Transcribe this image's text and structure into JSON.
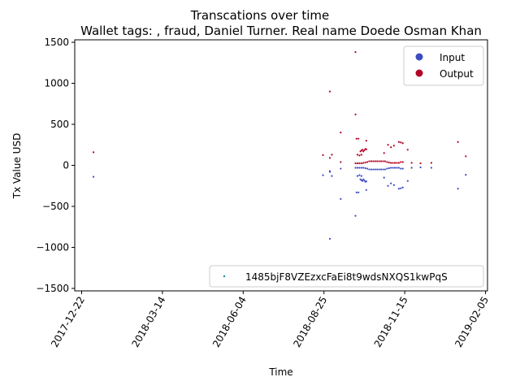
{
  "chart_data": {
    "type": "scatter",
    "title": "Transcations over time",
    "subtitle": "Wallet tags: , fraud, Daniel Turner. Real name Doede Osman Khan",
    "xlabel": "Time",
    "ylabel": "Tx Value USD",
    "xlim": [
      "2017-12-15",
      "2019-02-07"
    ],
    "ylim": [
      -1530,
      1530
    ],
    "x_ticks": [
      "2017-12-22",
      "2018-03-14",
      "2018-06-04",
      "2018-08-25",
      "2018-11-15",
      "2019-02-05"
    ],
    "y_ticks": [
      -1500,
      -1000,
      -500,
      0,
      500,
      1000,
      1500
    ],
    "grid": false,
    "legend_top": {
      "placement": "top-right",
      "entries": [
        {
          "label": "Input",
          "color": "#3b4cc0"
        },
        {
          "label": "Output",
          "color": "#b40426"
        }
      ]
    },
    "legend_bottom": {
      "placement": "bottom-right",
      "entries": [
        {
          "label": "1485bjF8VZEzxcFaEi8t9wdsNXQS1kwPqS",
          "color": "#1f8a8a"
        }
      ]
    },
    "colors": {
      "input": "#3b4cc0",
      "output": "#b40426"
    },
    "series": [
      {
        "name": "Input",
        "points": [
          [
            "2018-01-03",
            -140
          ],
          [
            "2018-08-24",
            -120
          ],
          [
            "2018-08-31",
            -80
          ],
          [
            "2018-08-31",
            -70
          ],
          [
            "2018-09-02",
            -130
          ],
          [
            "2018-08-31",
            -895
          ],
          [
            "2018-09-11",
            -40
          ],
          [
            "2018-09-11",
            -410
          ],
          [
            "2018-09-26",
            -615
          ],
          [
            "2018-09-27",
            -330
          ],
          [
            "2018-09-29",
            -330
          ],
          [
            "2018-09-26",
            -30
          ],
          [
            "2018-09-28",
            -30
          ],
          [
            "2018-09-30",
            -30
          ],
          [
            "2018-10-02",
            -30
          ],
          [
            "2018-10-04",
            -30
          ],
          [
            "2018-10-06",
            -35
          ],
          [
            "2018-10-08",
            -40
          ],
          [
            "2018-10-10",
            -50
          ],
          [
            "2018-10-12",
            -50
          ],
          [
            "2018-10-14",
            -50
          ],
          [
            "2018-10-16",
            -50
          ],
          [
            "2018-10-18",
            -50
          ],
          [
            "2018-10-20",
            -50
          ],
          [
            "2018-10-22",
            -50
          ],
          [
            "2018-10-24",
            -50
          ],
          [
            "2018-10-26",
            -50
          ],
          [
            "2018-10-28",
            -40
          ],
          [
            "2018-10-30",
            -35
          ],
          [
            "2018-11-01",
            -30
          ],
          [
            "2018-11-03",
            -30
          ],
          [
            "2018-11-05",
            -30
          ],
          [
            "2018-11-07",
            -30
          ],
          [
            "2018-11-09",
            -30
          ],
          [
            "2018-11-11",
            -40
          ],
          [
            "2018-11-13",
            -40
          ],
          [
            "2018-09-28",
            -130
          ],
          [
            "2018-09-30",
            -120
          ],
          [
            "2018-10-02",
            -130
          ],
          [
            "2018-10-01",
            -170
          ],
          [
            "2018-10-02",
            -180
          ],
          [
            "2018-10-03",
            -190
          ],
          [
            "2018-10-04",
            -170
          ],
          [
            "2018-10-05",
            -185
          ],
          [
            "2018-10-06",
            -200
          ],
          [
            "2018-10-07",
            -195
          ],
          [
            "2018-10-07",
            -300
          ],
          [
            "2018-10-25",
            -150
          ],
          [
            "2018-10-29",
            -250
          ],
          [
            "2018-11-01",
            -220
          ],
          [
            "2018-11-04",
            -240
          ],
          [
            "2018-11-09",
            -285
          ],
          [
            "2018-11-11",
            -280
          ],
          [
            "2018-11-13",
            -270
          ],
          [
            "2018-11-18",
            -190
          ],
          [
            "2018-11-22",
            -30
          ],
          [
            "2018-12-01",
            -25
          ],
          [
            "2018-12-12",
            -30
          ],
          [
            "2019-01-08",
            -285
          ],
          [
            "2019-01-16",
            -115
          ]
        ]
      },
      {
        "name": "Output",
        "points": [
          [
            "2018-01-03",
            160
          ],
          [
            "2018-08-24",
            125
          ],
          [
            "2018-08-31",
            900
          ],
          [
            "2018-08-31",
            90
          ],
          [
            "2018-09-02",
            130
          ],
          [
            "2018-09-11",
            40
          ],
          [
            "2018-09-11",
            400
          ],
          [
            "2018-09-26",
            1380
          ],
          [
            "2018-09-26",
            620
          ],
          [
            "2018-09-27",
            325
          ],
          [
            "2018-09-29",
            325
          ],
          [
            "2018-09-26",
            25
          ],
          [
            "2018-09-28",
            25
          ],
          [
            "2018-09-30",
            25
          ],
          [
            "2018-10-02",
            25
          ],
          [
            "2018-10-04",
            30
          ],
          [
            "2018-10-06",
            35
          ],
          [
            "2018-10-08",
            40
          ],
          [
            "2018-10-10",
            50
          ],
          [
            "2018-10-12",
            50
          ],
          [
            "2018-10-14",
            50
          ],
          [
            "2018-10-16",
            50
          ],
          [
            "2018-10-18",
            50
          ],
          [
            "2018-10-20",
            50
          ],
          [
            "2018-10-22",
            50
          ],
          [
            "2018-10-24",
            50
          ],
          [
            "2018-10-26",
            50
          ],
          [
            "2018-10-28",
            40
          ],
          [
            "2018-10-30",
            35
          ],
          [
            "2018-11-01",
            30
          ],
          [
            "2018-11-03",
            30
          ],
          [
            "2018-11-05",
            30
          ],
          [
            "2018-11-07",
            30
          ],
          [
            "2018-11-09",
            30
          ],
          [
            "2018-11-11",
            40
          ],
          [
            "2018-11-13",
            40
          ],
          [
            "2018-09-28",
            130
          ],
          [
            "2018-09-30",
            120
          ],
          [
            "2018-10-02",
            130
          ],
          [
            "2018-10-01",
            170
          ],
          [
            "2018-10-02",
            180
          ],
          [
            "2018-10-03",
            190
          ],
          [
            "2018-10-04",
            170
          ],
          [
            "2018-10-05",
            185
          ],
          [
            "2018-10-06",
            200
          ],
          [
            "2018-10-07",
            195
          ],
          [
            "2018-10-07",
            300
          ],
          [
            "2018-10-25",
            150
          ],
          [
            "2018-10-29",
            250
          ],
          [
            "2018-11-01",
            220
          ],
          [
            "2018-11-04",
            240
          ],
          [
            "2018-11-09",
            285
          ],
          [
            "2018-11-11",
            280
          ],
          [
            "2018-11-13",
            270
          ],
          [
            "2018-11-18",
            190
          ],
          [
            "2018-11-22",
            30
          ],
          [
            "2018-12-01",
            25
          ],
          [
            "2018-12-12",
            30
          ],
          [
            "2019-01-08",
            285
          ],
          [
            "2019-01-16",
            110
          ]
        ]
      }
    ]
  }
}
